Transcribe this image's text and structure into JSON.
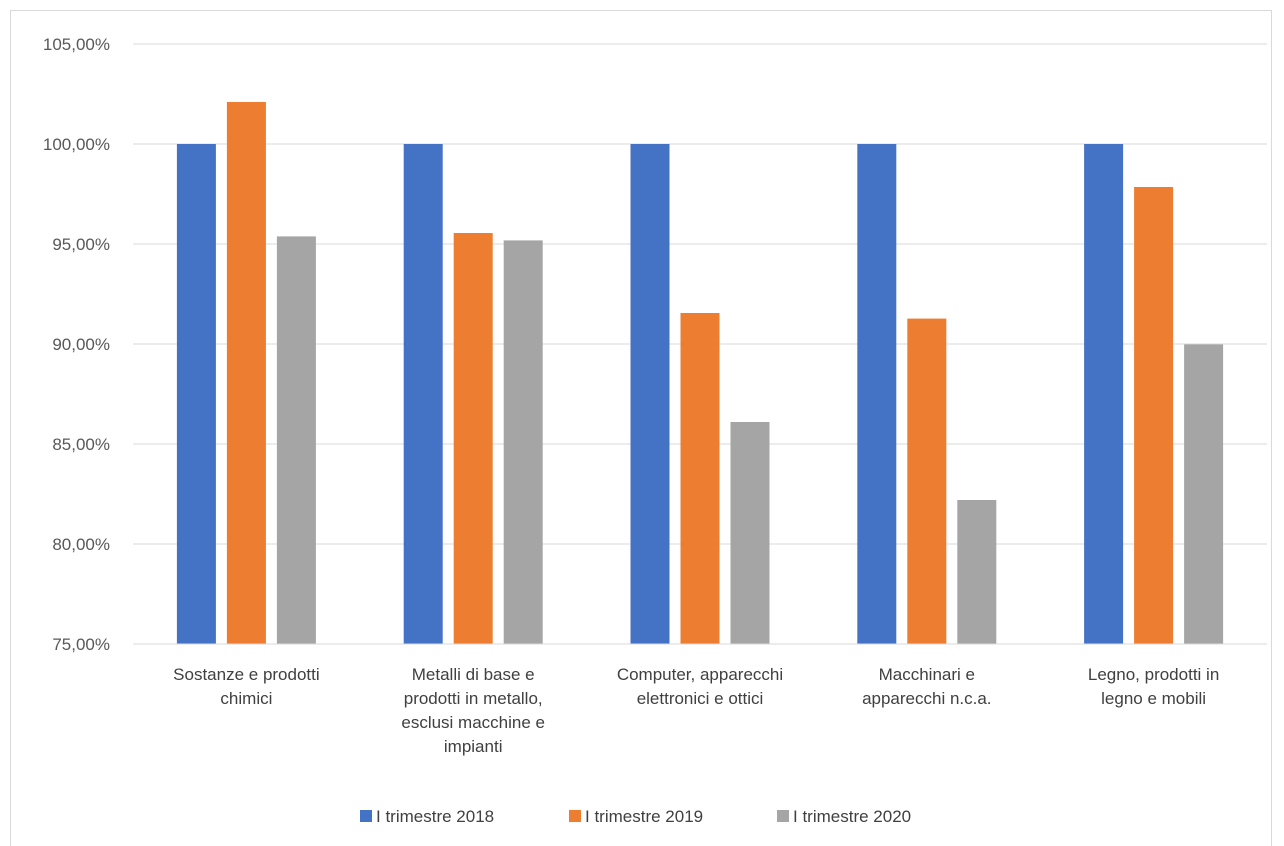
{
  "chart_data": {
    "type": "bar",
    "title": "",
    "xlabel": "",
    "ylabel": "",
    "categories": [
      "Sostanze e prodotti chimici",
      "Metalli di base e prodotti in metallo, esclusi macchine e impianti",
      "Computer, apparecchi elettronici e ottici",
      "Macchinari e apparecchi n.c.a.",
      "Legno, prodotti in legno e mobili"
    ],
    "category_lines": [
      [
        "Sostanze e prodotti",
        "chimici"
      ],
      [
        "Metalli di base e",
        "prodotti in metallo,",
        "esclusi macchine e",
        "impianti"
      ],
      [
        "Computer, apparecchi",
        "elettronici e ottici"
      ],
      [
        "Macchinari e",
        "apparecchi n.c.a."
      ],
      [
        "Legno, prodotti in",
        "legno e mobili"
      ]
    ],
    "series": [
      {
        "name": "I trimestre 2018",
        "color": "#4472c4",
        "values": [
          100.0,
          100.0,
          100.0,
          100.0,
          100.0
        ]
      },
      {
        "name": "I trimestre 2019",
        "color": "#ed7d31",
        "values": [
          102.1,
          95.55,
          91.55,
          91.27,
          97.85
        ]
      },
      {
        "name": "I trimestre 2020",
        "color": "#a5a5a5",
        "values": [
          95.38,
          95.18,
          86.1,
          82.2,
          89.98
        ]
      }
    ],
    "ylim": [
      75,
      105
    ],
    "yticks": [
      75,
      80,
      85,
      90,
      95,
      100,
      105
    ],
    "ytick_labels": [
      "75,00%",
      "80,00%",
      "85,00%",
      "90,00%",
      "95,00%",
      "100,00%",
      "105,00%"
    ],
    "grid": true,
    "gridline_color": "#d9d9d9",
    "legend_position": "bottom"
  }
}
